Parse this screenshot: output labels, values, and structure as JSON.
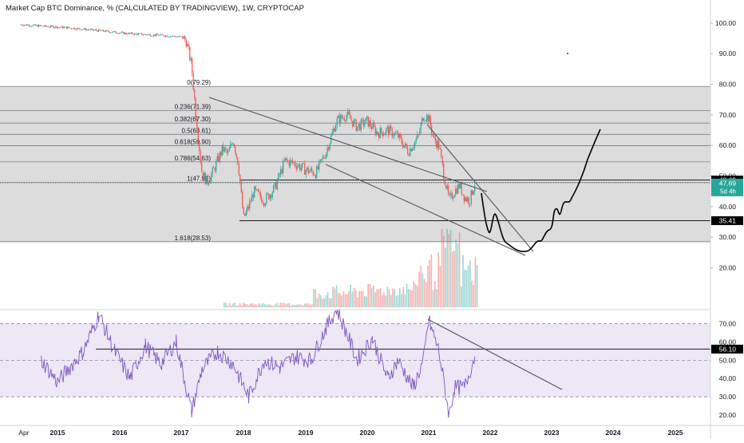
{
  "header": {
    "title": "Market Cap BTC Dominance, % (CALCULATED BY TRADINGVIEW), 1W, CRYPTOCAP"
  },
  "colors": {
    "up": "#26a69a",
    "down": "#ef5350",
    "rsi_line": "#7e57c2",
    "rsi_band": "#ede7f6",
    "fib_zone": "#dcdcdc",
    "drawing": "#000000",
    "price_label_bg": "#2962ff",
    "price_label_bg2": "#26a69a"
  },
  "chart_data": [
    {
      "type": "line",
      "subtype": "candlestick",
      "title": "Market Cap BTC Dominance, % (CALCULATED BY TRADINGVIEW), 1W, CRYPTOCAP",
      "ylim": [
        10,
        110
      ],
      "x_ticks": [
        "Apr",
        "2015",
        "2016",
        "2017",
        "2018",
        "2019",
        "2020",
        "2021",
        "2022",
        "2023",
        "2024",
        "2025"
      ],
      "y_ticks": [
        20.0,
        30.0,
        40.0,
        50.0,
        60.0,
        70.0,
        80.0,
        90.0,
        100.0,
        110.0
      ],
      "fib_levels": [
        {
          "label": "0(79.29)",
          "value": 79.29
        },
        {
          "label": "0.236(71.39)",
          "value": 71.39
        },
        {
          "label": "0.382(67.30)",
          "value": 67.3
        },
        {
          "label": "0.5(63.61)",
          "value": 63.61
        },
        {
          "label": "0.618(59.90)",
          "value": 59.9
        },
        {
          "label": "0.786(54.63)",
          "value": 54.63
        },
        {
          "label": "1(47.92)",
          "value": 47.92
        },
        {
          "label": "1.618(28.53)",
          "value": 28.53
        }
      ],
      "horizontal_lines": [
        {
          "value": 35.41,
          "label": "35.41"
        },
        {
          "value": 48.69,
          "label": "48.69"
        }
      ],
      "last_price": {
        "value": "47.69",
        "countdown": "5d 4h"
      },
      "series": [
        {
          "x": [
            "2014-04",
            "2014-09",
            "2015-03",
            "2015-09",
            "2016-03",
            "2016-09",
            "2017-01",
            "2017-02",
            "2017-03",
            "2017-04",
            "2017-05",
            "2017-06",
            "2017-07",
            "2017-09",
            "2017-10",
            "2017-11",
            "2017-12",
            "2018-01",
            "2018-02",
            "2018-03",
            "2018-05",
            "2018-07",
            "2018-09",
            "2018-11",
            "2019-01",
            "2019-03",
            "2019-05",
            "2019-07",
            "2019-09",
            "2019-11",
            "2020-01",
            "2020-03",
            "2020-05",
            "2020-07",
            "2020-09",
            "2020-11",
            "2020-12",
            "2021-01",
            "2021-02",
            "2021-03",
            "2021-04",
            "2021-05",
            "2021-06",
            "2021-07",
            "2021-08",
            "2021-09",
            "2021-10"
          ],
          "values": [
            99.5,
            99.0,
            98.5,
            97.5,
            96.5,
            96.0,
            95.5,
            94.0,
            86.0,
            67.0,
            51.0,
            48.0,
            51.0,
            59.0,
            57.0,
            62.0,
            54.0,
            36.0,
            40.0,
            45.0,
            42.0,
            46.0,
            55.0,
            54.0,
            52.0,
            51.0,
            58.0,
            68.0,
            70.0,
            66.0,
            68.0,
            64.0,
            65.0,
            63.0,
            58.0,
            63.0,
            70.0,
            69.0,
            62.0,
            60.0,
            50.0,
            42.0,
            45.0,
            47.0,
            43.0,
            42.0,
            47.7
          ]
        }
      ]
    },
    {
      "type": "line",
      "title": "",
      "ylim": [
        10,
        80
      ],
      "y_ticks": [
        20.0,
        30.0,
        40.0,
        50.0,
        60.0,
        70.0
      ],
      "band": [
        30,
        70
      ],
      "horizontal_lines": [
        {
          "value": 56.1,
          "label": "56.10"
        }
      ],
      "series": [
        {
          "x": [
            "2014-09",
            "2015-01",
            "2015-06",
            "2015-09",
            "2015-12",
            "2016-03",
            "2016-06",
            "2016-09",
            "2016-12",
            "2017-03",
            "2017-05",
            "2017-08",
            "2017-11",
            "2018-02",
            "2018-05",
            "2018-08",
            "2018-11",
            "2019-02",
            "2019-05",
            "2019-07",
            "2019-09",
            "2019-11",
            "2020-02",
            "2020-05",
            "2020-07",
            "2020-10",
            "2020-12",
            "2021-01",
            "2021-03",
            "2021-05",
            "2021-06",
            "2021-08",
            "2021-10"
          ],
          "values": [
            50,
            38,
            55,
            75,
            55,
            40,
            58,
            48,
            60,
            22,
            45,
            55,
            48,
            30,
            50,
            46,
            52,
            50,
            68,
            78,
            65,
            50,
            62,
            40,
            50,
            35,
            50,
            72,
            55,
            20,
            35,
            35,
            52
          ]
        }
      ]
    }
  ]
}
